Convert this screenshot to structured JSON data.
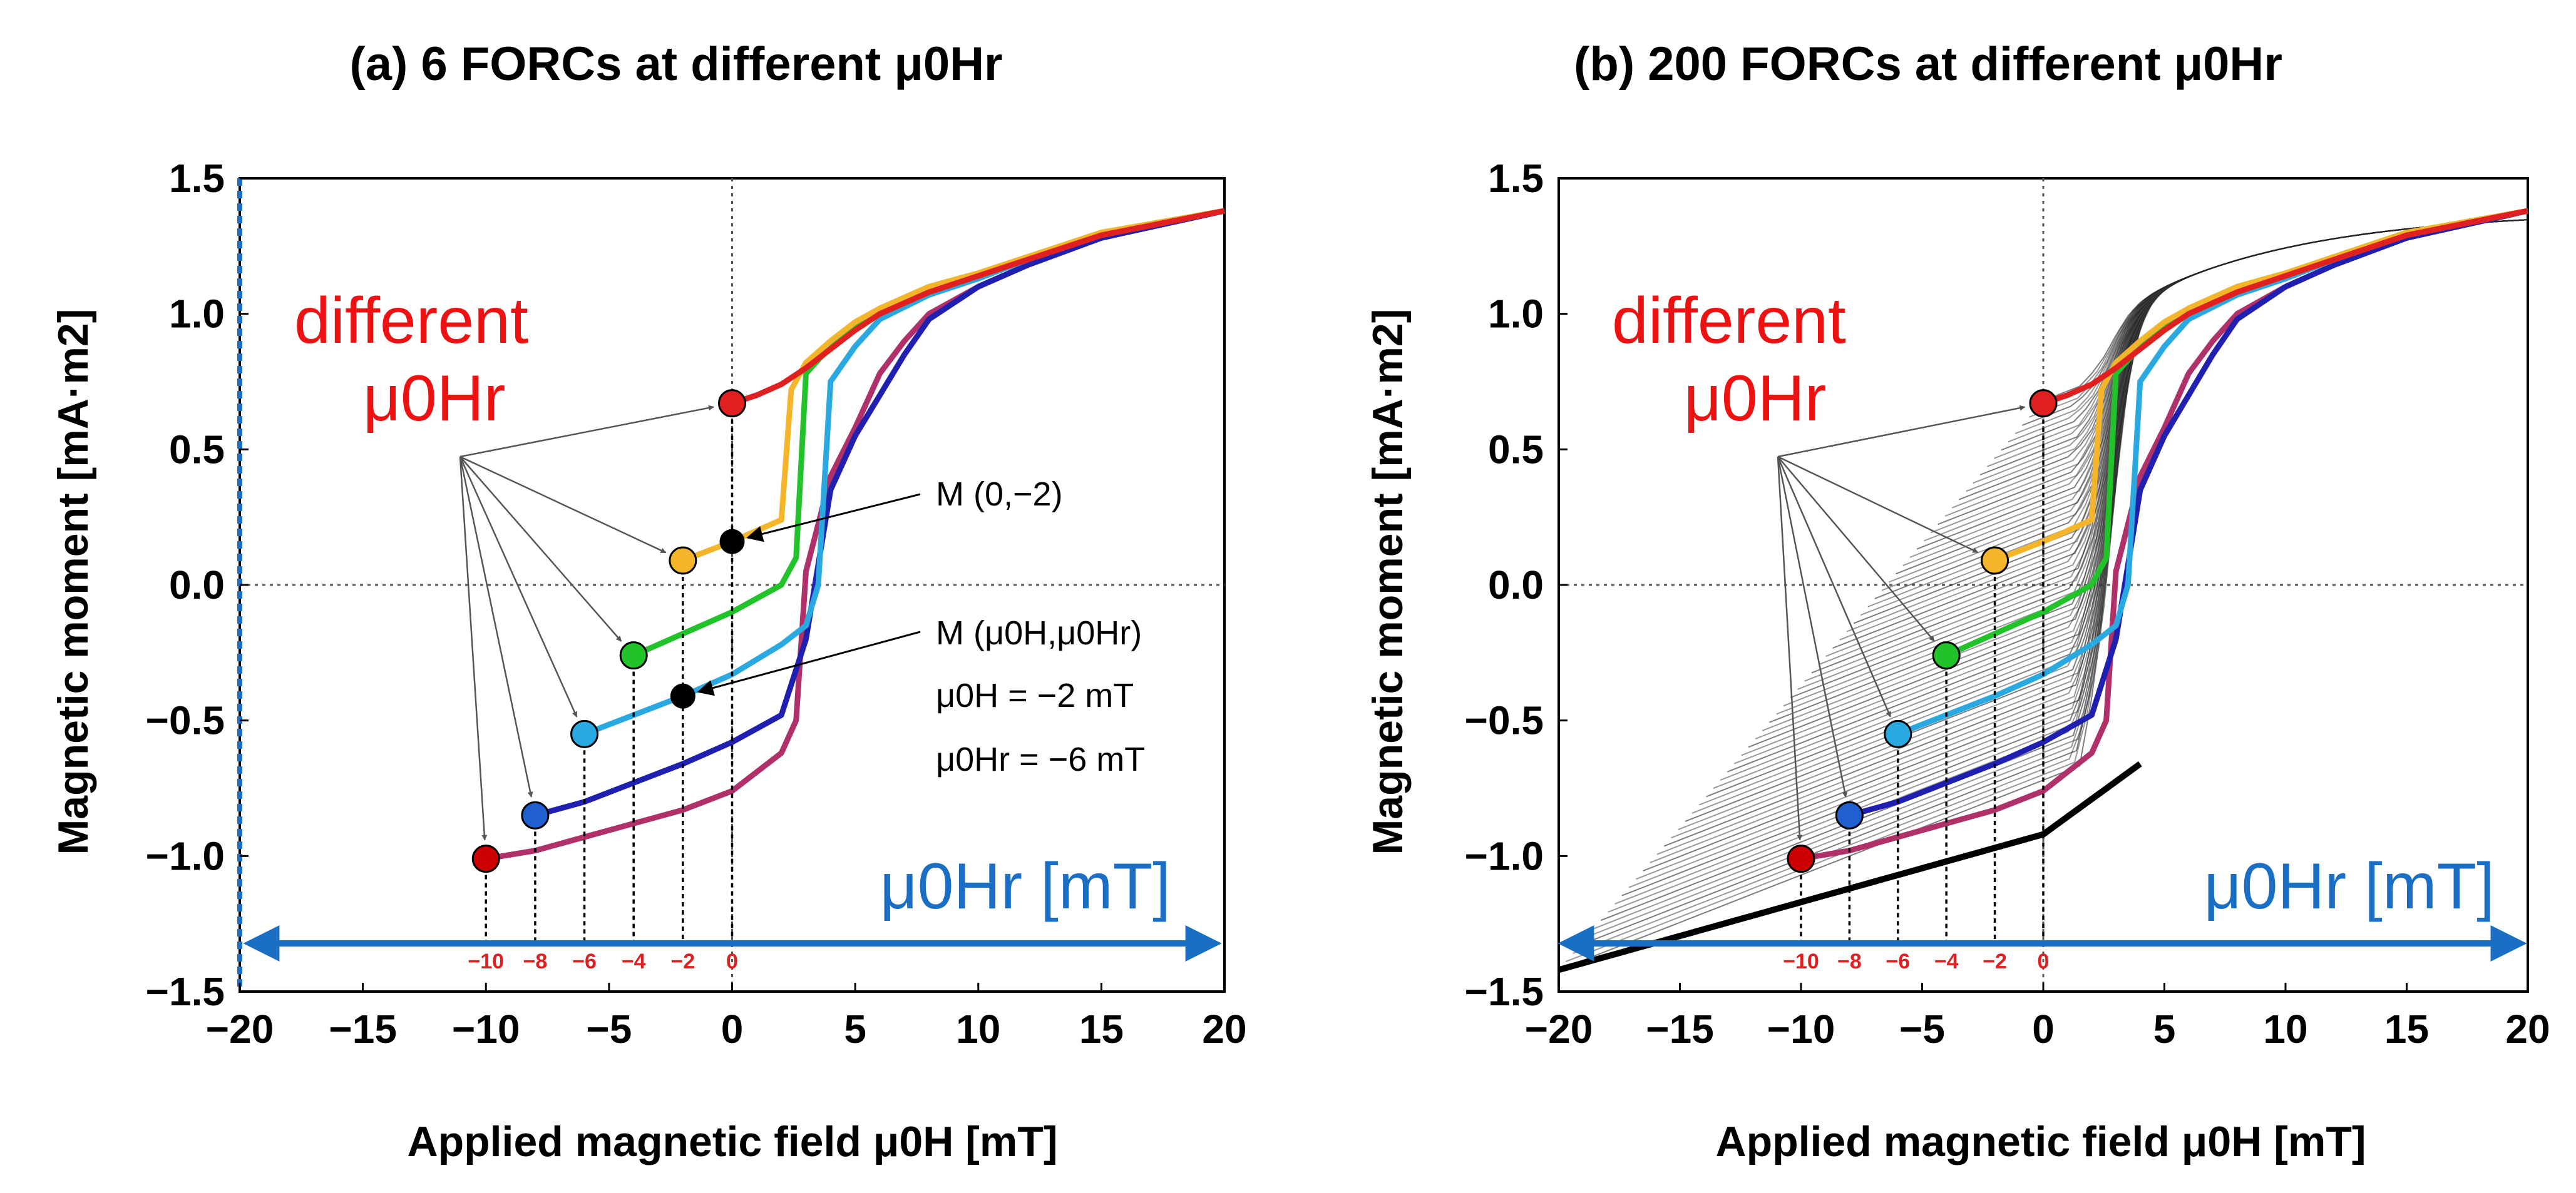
{
  "chart_data": [
    {
      "id": "a",
      "type": "line",
      "title": "(a) 6 FORCs at different μ0Hr",
      "xlabel": "Applied magnetic field μ0H [mT]",
      "ylabel": "Magnetic moment [mA·m2]",
      "xlim": [
        -20,
        20
      ],
      "ylim": [
        -1.5,
        1.5
      ],
      "x_ticks": [
        "−20",
        "−15",
        "−10",
        "−5",
        "0",
        "5",
        "10",
        "15",
        "20"
      ],
      "y_ticks": [
        "1.5",
        "1.0",
        "0.5",
        "0.0",
        "−0.5",
        "−1.0",
        "−1.5"
      ],
      "hr_ticks": [
        "−10",
        "−8",
        "−6",
        "−4",
        "−2",
        "0"
      ],
      "series": [
        {
          "name": "μ0Hr = −10 mT",
          "color": "#b0306a",
          "x": [
            -10,
            -8,
            -6,
            -4,
            -2,
            0,
            2,
            2.6,
            3,
            4,
            5,
            6,
            7,
            8,
            10,
            12,
            15,
            20
          ],
          "y": [
            -1.01,
            -0.98,
            -0.93,
            -0.88,
            -0.83,
            -0.76,
            -0.62,
            -0.5,
            0.05,
            0.4,
            0.58,
            0.78,
            0.9,
            1.0,
            1.1,
            1.18,
            1.28,
            1.38
          ]
        },
        {
          "name": "μ0Hr = −8 mT",
          "color": "#2020b0",
          "x": [
            -8,
            -6,
            -4,
            -2,
            0,
            2,
            3,
            4,
            5,
            6,
            7,
            8,
            10,
            12,
            15,
            20
          ],
          "y": [
            -0.85,
            -0.8,
            -0.73,
            -0.66,
            -0.58,
            -0.48,
            -0.2,
            0.35,
            0.55,
            0.7,
            0.85,
            0.98,
            1.1,
            1.18,
            1.28,
            1.38
          ]
        },
        {
          "name": "μ0Hr = −6 mT",
          "color": "#2aa9e0",
          "x": [
            -6,
            -4,
            -2,
            0,
            2,
            3,
            3.5,
            4,
            5,
            6,
            8,
            10,
            12,
            15,
            20
          ],
          "y": [
            -0.55,
            -0.48,
            -0.41,
            -0.33,
            -0.22,
            -0.15,
            0.0,
            0.75,
            0.88,
            0.98,
            1.07,
            1.13,
            1.2,
            1.29,
            1.38
          ]
        },
        {
          "name": "μ0Hr = −4 mT",
          "color": "#22c22a",
          "x": [
            -4,
            -2,
            0,
            2,
            2.6,
            3,
            4,
            5,
            6,
            8,
            10,
            12,
            15,
            20
          ],
          "y": [
            -0.26,
            -0.18,
            -0.1,
            0.0,
            0.1,
            0.78,
            0.88,
            0.96,
            1.02,
            1.1,
            1.15,
            1.21,
            1.3,
            1.38
          ]
        },
        {
          "name": "μ0Hr = −2 mT",
          "color": "#f5b52a",
          "x": [
            -2,
            0,
            1,
            2,
            2.4,
            3,
            4,
            5,
            6,
            8,
            10,
            12,
            15,
            20
          ],
          "y": [
            0.09,
            0.16,
            0.2,
            0.24,
            0.72,
            0.82,
            0.9,
            0.97,
            1.02,
            1.1,
            1.15,
            1.21,
            1.3,
            1.38
          ]
        },
        {
          "name": "μ0Hr = 0 mT",
          "color": "#e02020",
          "x": [
            0,
            1,
            2,
            3,
            4,
            5,
            6,
            8,
            10,
            12,
            15,
            20
          ],
          "y": [
            0.67,
            0.7,
            0.74,
            0.8,
            0.87,
            0.94,
            1.0,
            1.08,
            1.14,
            1.2,
            1.29,
            1.38
          ]
        }
      ],
      "start_points": [
        {
          "x": -10,
          "y": -1.01,
          "color": "#cc0000"
        },
        {
          "x": -8,
          "y": -0.85,
          "color": "#1f5fd0"
        },
        {
          "x": -6,
          "y": -0.55,
          "color": "#2aa9e0"
        },
        {
          "x": -4,
          "y": -0.26,
          "color": "#22c22a"
        },
        {
          "x": -2,
          "y": 0.09,
          "color": "#f5b52a"
        },
        {
          "x": 0,
          "y": 0.67,
          "color": "#e02020"
        }
      ],
      "marked_points": [
        {
          "x": 0,
          "y": 0.16,
          "label": "M (0,−2)"
        },
        {
          "x": -2,
          "y": -0.41,
          "label": "M (μ0H,μ0Hr)"
        }
      ],
      "annotation_lines": [
        "μ0H = −2 mT",
        "μ0Hr = −6 mT"
      ],
      "callout": {
        "line1": "different",
        "line2": "μ0Hr"
      },
      "hr_axis_label": "μ0Hr [mT]"
    },
    {
      "id": "b",
      "type": "line",
      "title": "(b) 200 FORCs at different μ0Hr",
      "xlabel": "Applied magnetic field μ0H [mT]",
      "ylabel": "Magnetic moment [mA·m2]",
      "xlim": [
        -20,
        20
      ],
      "ylim": [
        -1.5,
        1.5
      ],
      "x_ticks": [
        "−20",
        "−15",
        "−10",
        "−5",
        "0",
        "5",
        "10",
        "15",
        "20"
      ],
      "y_ticks": [
        "1.5",
        "1.0",
        "0.5",
        "0.0",
        "−0.5",
        "−1.0",
        "−1.5"
      ],
      "hr_ticks": [
        "−10",
        "−8",
        "−6",
        "−4",
        "−2",
        "0"
      ],
      "forc_count": 200,
      "series": [
        {
          "name": "μ0Hr = −10 mT",
          "color": "#b0306a",
          "x": [
            -10,
            -8,
            -6,
            -4,
            -2,
            0,
            2,
            2.6,
            3,
            4,
            5,
            6,
            7,
            8,
            10,
            12,
            15,
            20
          ],
          "y": [
            -1.01,
            -0.98,
            -0.93,
            -0.88,
            -0.83,
            -0.76,
            -0.62,
            -0.5,
            0.05,
            0.4,
            0.58,
            0.78,
            0.9,
            1.0,
            1.1,
            1.18,
            1.28,
            1.38
          ]
        },
        {
          "name": "μ0Hr = −8 mT",
          "color": "#2020b0",
          "x": [
            -8,
            -6,
            -4,
            -2,
            0,
            2,
            3,
            4,
            5,
            6,
            7,
            8,
            10,
            12,
            15,
            20
          ],
          "y": [
            -0.85,
            -0.8,
            -0.73,
            -0.66,
            -0.58,
            -0.48,
            -0.2,
            0.35,
            0.55,
            0.7,
            0.85,
            0.98,
            1.1,
            1.18,
            1.28,
            1.38
          ]
        },
        {
          "name": "μ0Hr = −6 mT",
          "color": "#2aa9e0",
          "x": [
            -6,
            -4,
            -2,
            0,
            2,
            3,
            3.5,
            4,
            5,
            6,
            8,
            10,
            12,
            15,
            20
          ],
          "y": [
            -0.55,
            -0.48,
            -0.41,
            -0.33,
            -0.22,
            -0.15,
            0.0,
            0.75,
            0.88,
            0.98,
            1.07,
            1.13,
            1.2,
            1.29,
            1.38
          ]
        },
        {
          "name": "μ0Hr = −4 mT",
          "color": "#22c22a",
          "x": [
            -4,
            -2,
            0,
            2,
            2.6,
            3,
            4,
            5,
            6,
            8,
            10,
            12,
            15,
            20
          ],
          "y": [
            -0.26,
            -0.18,
            -0.1,
            0.0,
            0.1,
            0.78,
            0.88,
            0.96,
            1.02,
            1.1,
            1.15,
            1.21,
            1.3,
            1.38
          ]
        },
        {
          "name": "μ0Hr = −2 mT",
          "color": "#f5b52a",
          "x": [
            -2,
            0,
            1,
            2,
            2.4,
            3,
            4,
            5,
            6,
            8,
            10,
            12,
            15,
            20
          ],
          "y": [
            0.09,
            0.16,
            0.2,
            0.24,
            0.72,
            0.82,
            0.9,
            0.97,
            1.02,
            1.1,
            1.15,
            1.21,
            1.3,
            1.38
          ]
        },
        {
          "name": "μ0Hr = 0 mT",
          "color": "#e02020",
          "x": [
            0,
            1,
            2,
            3,
            4,
            5,
            6,
            8,
            10,
            12,
            15,
            20
          ],
          "y": [
            0.67,
            0.7,
            0.74,
            0.8,
            0.87,
            0.94,
            1.0,
            1.08,
            1.14,
            1.2,
            1.29,
            1.38
          ]
        }
      ],
      "start_points": [
        {
          "x": -10,
          "y": -1.01,
          "color": "#cc0000"
        },
        {
          "x": -8,
          "y": -0.85,
          "color": "#1f5fd0"
        },
        {
          "x": -6,
          "y": -0.55,
          "color": "#2aa9e0"
        },
        {
          "x": -4,
          "y": -0.26,
          "color": "#22c22a"
        },
        {
          "x": -2,
          "y": 0.09,
          "color": "#f5b52a"
        },
        {
          "x": 0,
          "y": 0.67,
          "color": "#e02020"
        }
      ],
      "callout": {
        "line1": "different",
        "line2": "μ0Hr"
      },
      "hr_axis_label": "μ0Hr [mT]"
    }
  ]
}
